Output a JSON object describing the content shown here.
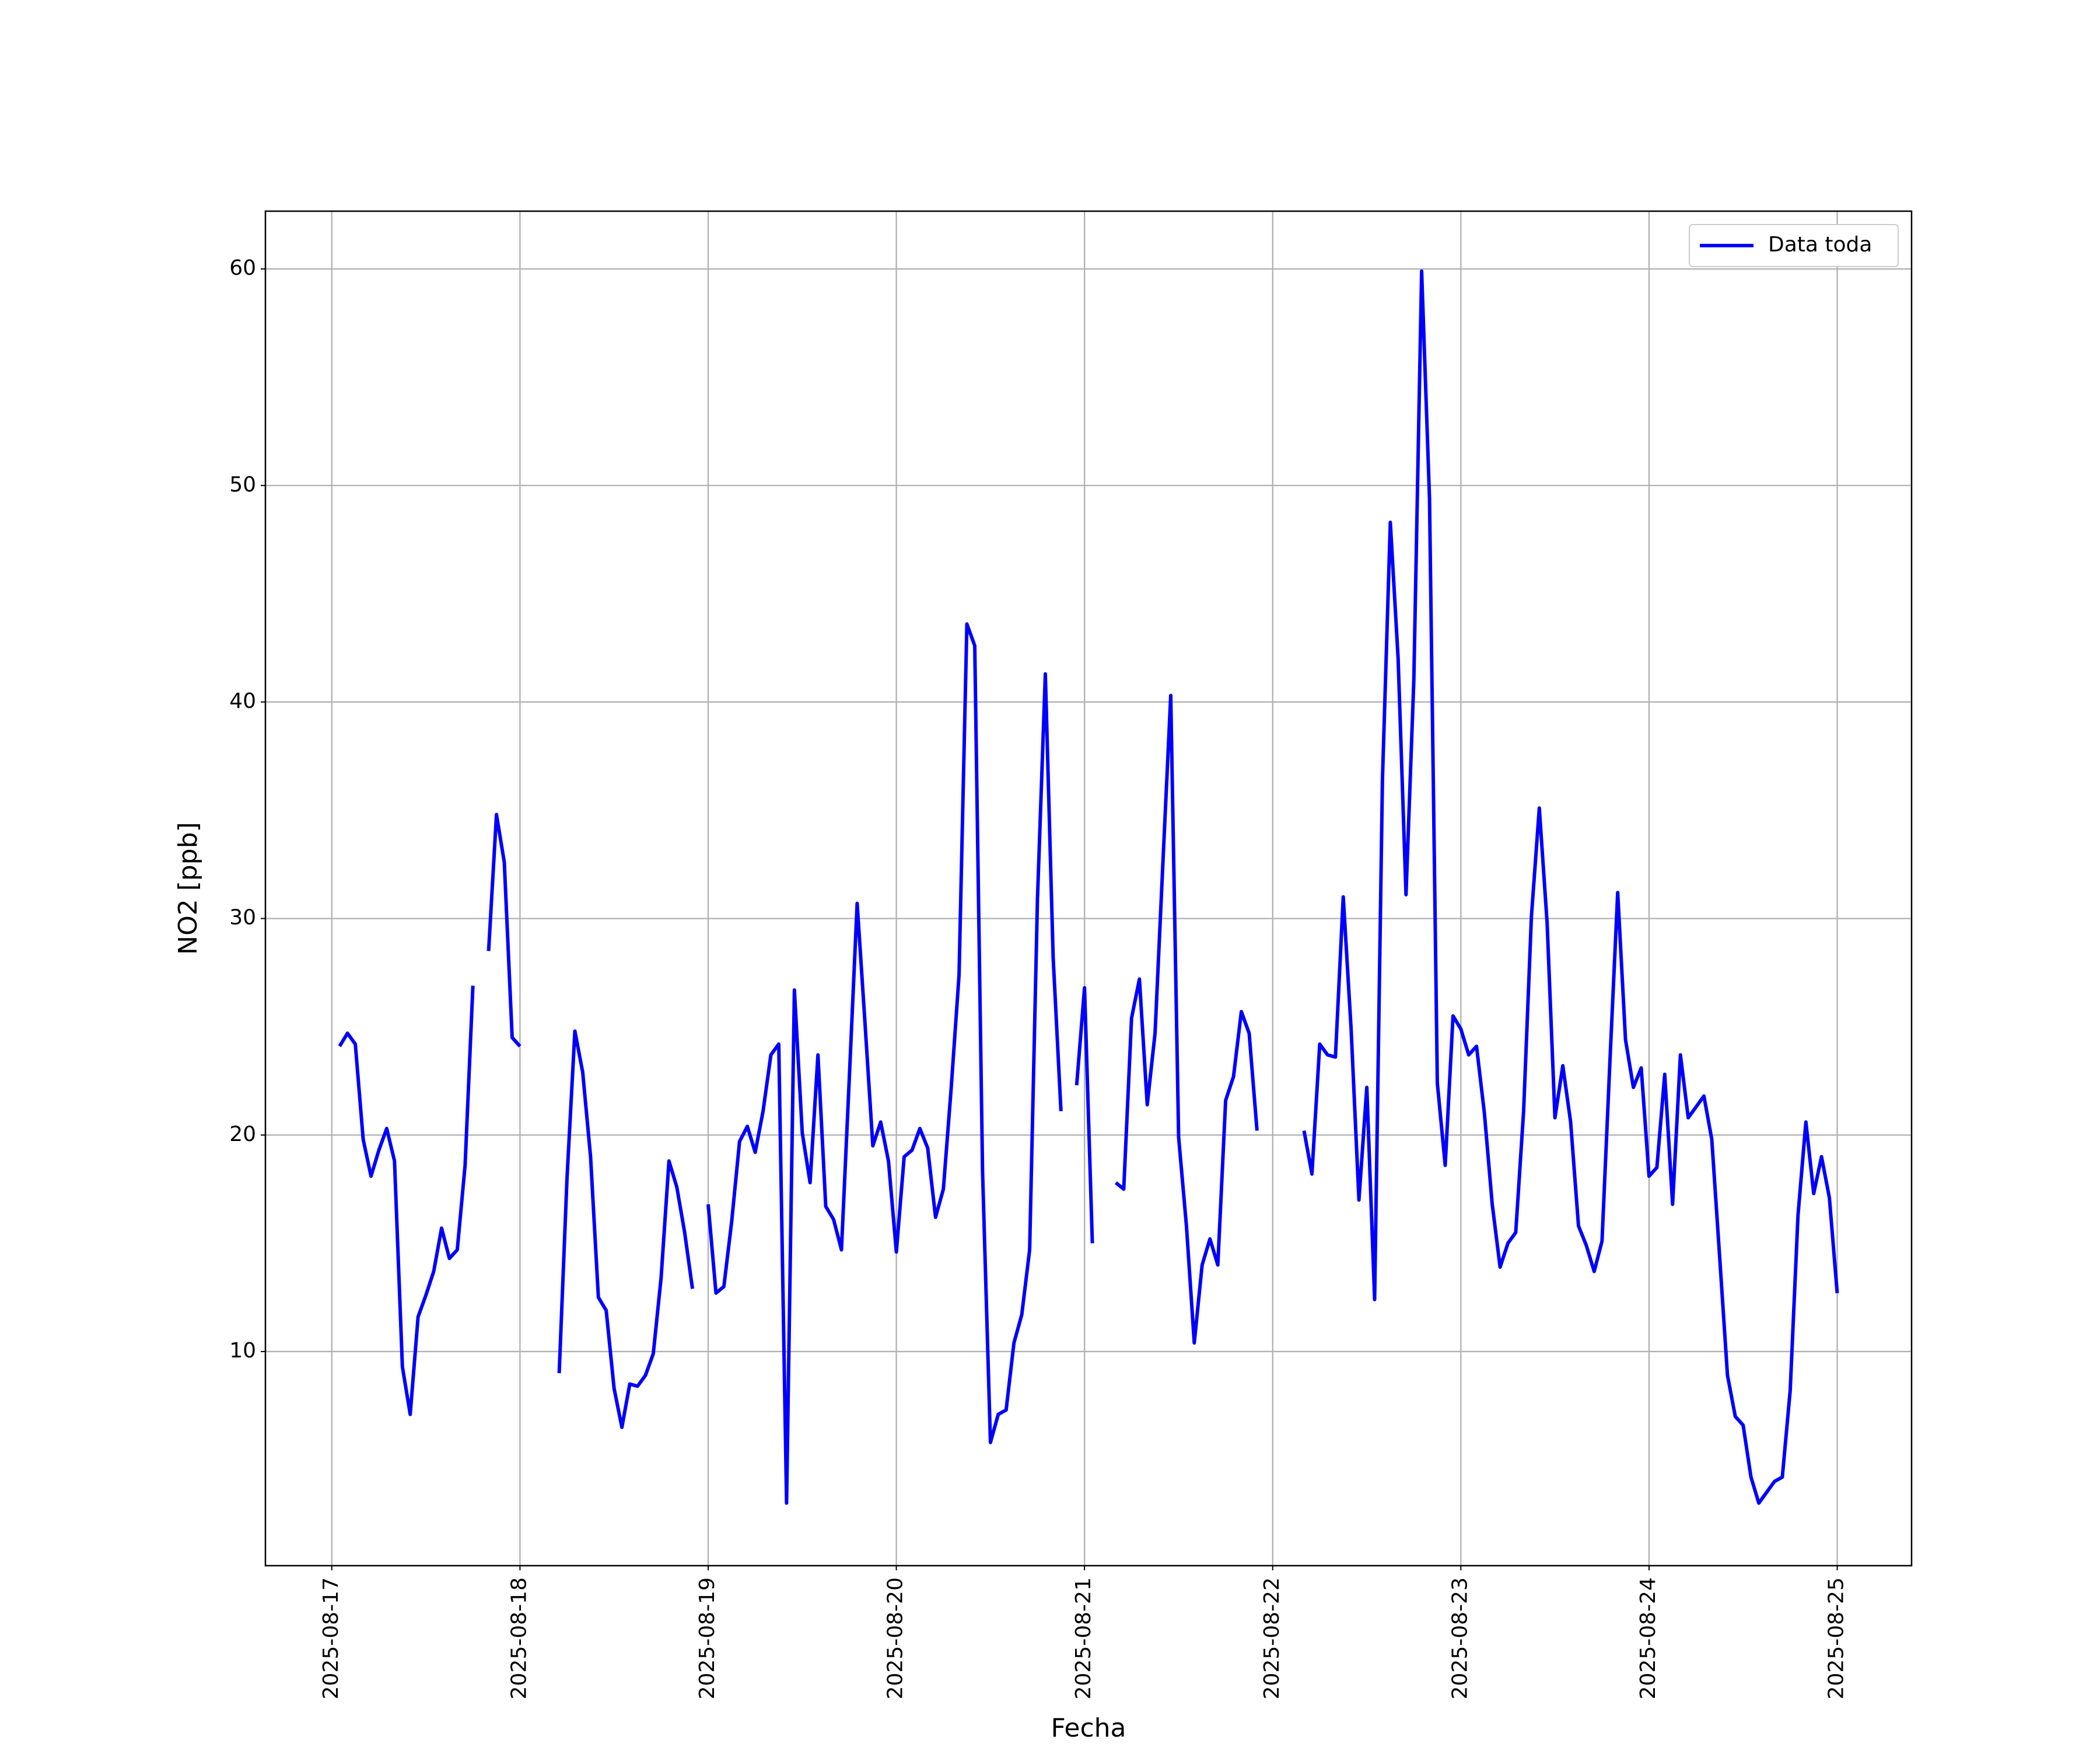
{
  "chart_data": {
    "type": "line",
    "xlabel": "Fecha",
    "ylabel": "NO2 [ppb]",
    "x": [
      "2025-08-17 01:00",
      "2025-08-17 02:00",
      "2025-08-17 03:00",
      "2025-08-17 04:00",
      "2025-08-17 05:00",
      "2025-08-17 06:00",
      "2025-08-17 07:00",
      "2025-08-17 08:00",
      "2025-08-17 09:00",
      "2025-08-17 10:00",
      "2025-08-17 11:00",
      "2025-08-17 12:00",
      "2025-08-17 13:00",
      "2025-08-17 14:00",
      "2025-08-17 15:00",
      "2025-08-17 16:00",
      "2025-08-17 17:00",
      "2025-08-17 18:00",
      "2025-08-17 19:00",
      "2025-08-17 20:00",
      "2025-08-17 21:00",
      "2025-08-17 22:00",
      "2025-08-17 23:00",
      "2025-08-18 00:00",
      "2025-08-18 01:00",
      "2025-08-18 02:00",
      "2025-08-18 03:00",
      "2025-08-18 04:00",
      "2025-08-18 05:00",
      "2025-08-18 06:00",
      "2025-08-18 07:00",
      "2025-08-18 08:00",
      "2025-08-18 09:00",
      "2025-08-18 10:00",
      "2025-08-18 11:00",
      "2025-08-18 12:00",
      "2025-08-18 13:00",
      "2025-08-18 14:00",
      "2025-08-18 15:00",
      "2025-08-18 16:00",
      "2025-08-18 17:00",
      "2025-08-18 18:00",
      "2025-08-18 19:00",
      "2025-08-18 20:00",
      "2025-08-18 21:00",
      "2025-08-18 22:00",
      "2025-08-18 23:00",
      "2025-08-19 00:00",
      "2025-08-19 01:00",
      "2025-08-19 02:00",
      "2025-08-19 03:00",
      "2025-08-19 04:00",
      "2025-08-19 05:00",
      "2025-08-19 06:00",
      "2025-08-19 07:00",
      "2025-08-19 08:00",
      "2025-08-19 09:00",
      "2025-08-19 10:00",
      "2025-08-19 11:00",
      "2025-08-19 12:00",
      "2025-08-19 13:00",
      "2025-08-19 14:00",
      "2025-08-19 15:00",
      "2025-08-19 16:00",
      "2025-08-19 17:00",
      "2025-08-19 18:00",
      "2025-08-19 19:00",
      "2025-08-19 20:00",
      "2025-08-19 21:00",
      "2025-08-19 22:00",
      "2025-08-19 23:00",
      "2025-08-20 00:00",
      "2025-08-20 01:00",
      "2025-08-20 02:00",
      "2025-08-20 03:00",
      "2025-08-20 04:00",
      "2025-08-20 05:00",
      "2025-08-20 06:00",
      "2025-08-20 07:00",
      "2025-08-20 08:00",
      "2025-08-20 09:00",
      "2025-08-20 10:00",
      "2025-08-20 11:00",
      "2025-08-20 12:00",
      "2025-08-20 13:00",
      "2025-08-20 14:00",
      "2025-08-20 15:00",
      "2025-08-20 16:00",
      "2025-08-20 17:00",
      "2025-08-20 18:00",
      "2025-08-20 19:00",
      "2025-08-20 20:00",
      "2025-08-20 21:00",
      "2025-08-20 22:00",
      "2025-08-20 23:00",
      "2025-08-21 00:00",
      "2025-08-21 01:00",
      "2025-08-21 02:00",
      "2025-08-21 03:00",
      "2025-08-21 04:00",
      "2025-08-21 05:00",
      "2025-08-21 06:00",
      "2025-08-21 07:00",
      "2025-08-21 08:00",
      "2025-08-21 09:00",
      "2025-08-21 10:00",
      "2025-08-21 11:00",
      "2025-08-21 12:00",
      "2025-08-21 13:00",
      "2025-08-21 14:00",
      "2025-08-21 15:00",
      "2025-08-21 16:00",
      "2025-08-21 17:00",
      "2025-08-21 18:00",
      "2025-08-21 19:00",
      "2025-08-21 20:00",
      "2025-08-21 21:00",
      "2025-08-21 22:00",
      "2025-08-21 23:00",
      "2025-08-22 00:00",
      "2025-08-22 01:00",
      "2025-08-22 02:00",
      "2025-08-22 03:00",
      "2025-08-22 04:00",
      "2025-08-22 05:00",
      "2025-08-22 06:00",
      "2025-08-22 07:00",
      "2025-08-22 08:00",
      "2025-08-22 09:00",
      "2025-08-22 10:00",
      "2025-08-22 11:00",
      "2025-08-22 12:00",
      "2025-08-22 13:00",
      "2025-08-22 14:00",
      "2025-08-22 15:00",
      "2025-08-22 16:00",
      "2025-08-22 17:00",
      "2025-08-22 18:00",
      "2025-08-22 19:00",
      "2025-08-22 20:00",
      "2025-08-22 21:00",
      "2025-08-22 22:00",
      "2025-08-22 23:00",
      "2025-08-23 00:00",
      "2025-08-23 01:00",
      "2025-08-23 02:00",
      "2025-08-23 03:00",
      "2025-08-23 04:00",
      "2025-08-23 05:00",
      "2025-08-23 06:00",
      "2025-08-23 07:00",
      "2025-08-23 08:00",
      "2025-08-23 09:00",
      "2025-08-23 10:00",
      "2025-08-23 11:00",
      "2025-08-23 12:00",
      "2025-08-23 13:00",
      "2025-08-23 14:00",
      "2025-08-23 15:00",
      "2025-08-23 16:00",
      "2025-08-23 17:00",
      "2025-08-23 18:00",
      "2025-08-23 19:00",
      "2025-08-23 20:00",
      "2025-08-23 21:00",
      "2025-08-23 22:00",
      "2025-08-23 23:00",
      "2025-08-24 00:00",
      "2025-08-24 01:00",
      "2025-08-24 02:00",
      "2025-08-24 03:00",
      "2025-08-24 04:00",
      "2025-08-24 05:00",
      "2025-08-24 06:00",
      "2025-08-24 07:00",
      "2025-08-24 08:00",
      "2025-08-24 09:00",
      "2025-08-24 10:00",
      "2025-08-24 11:00",
      "2025-08-24 12:00",
      "2025-08-24 13:00",
      "2025-08-24 14:00",
      "2025-08-24 15:00",
      "2025-08-24 16:00",
      "2025-08-24 17:00",
      "2025-08-24 18:00",
      "2025-08-24 19:00",
      "2025-08-24 20:00",
      "2025-08-24 21:00",
      "2025-08-24 22:00",
      "2025-08-24 23:00",
      "2025-08-25 00:00"
    ],
    "series": [
      {
        "name": "Data toda",
        "color": "#0000ff",
        "values": [
          24.1,
          24.7,
          24.2,
          19.8,
          18.1,
          19.3,
          20.3,
          18.8,
          9.3,
          7.1,
          11.6,
          12.6,
          13.7,
          15.7,
          14.3,
          14.7,
          18.6,
          26.9,
          null,
          28.5,
          34.8,
          32.6,
          24.5,
          24.1,
          null,
          null,
          null,
          null,
          9.0,
          18.0,
          24.8,
          22.9,
          19.0,
          12.5,
          11.9,
          8.3,
          6.5,
          8.5,
          8.4,
          8.9,
          9.9,
          13.4,
          18.8,
          17.6,
          15.5,
          12.9,
          null,
          16.8,
          12.7,
          13.0,
          16.0,
          19.7,
          20.4,
          19.2,
          21.1,
          23.7,
          24.2,
          3.0,
          26.7,
          20.1,
          17.8,
          23.7,
          16.7,
          16.1,
          14.7,
          22.6,
          30.7,
          25.2,
          19.5,
          20.6,
          18.8,
          14.6,
          19.0,
          19.3,
          20.3,
          19.4,
          16.2,
          17.5,
          22.2,
          27.4,
          43.6,
          42.6,
          18.3,
          5.8,
          7.1,
          7.3,
          10.4,
          11.7,
          14.7,
          30.9,
          41.3,
          28.2,
          21.1,
          null,
          22.3,
          26.8,
          15.0,
          null,
          null,
          17.8,
          17.5,
          25.4,
          27.2,
          21.4,
          24.7,
          32.6,
          40.3,
          19.9,
          15.8,
          10.4,
          14.0,
          15.2,
          14.0,
          21.6,
          22.7,
          25.7,
          24.7,
          20.2,
          null,
          null,
          null,
          null,
          null,
          20.2,
          18.2,
          24.2,
          23.7,
          23.6,
          31.0,
          24.9,
          17.0,
          22.2,
          12.4,
          36.4,
          48.3,
          42.0,
          31.1,
          41.0,
          59.9,
          49.4,
          22.4,
          18.6,
          25.5,
          24.9,
          23.7,
          24.1,
          21.0,
          16.8,
          13.9,
          15.0,
          15.5,
          21.1,
          30.1,
          35.1,
          29.8,
          20.8,
          23.2,
          20.6,
          15.8,
          14.9,
          13.7,
          15.1,
          23.3,
          31.2,
          24.4,
          22.2,
          23.1,
          18.1,
          18.5,
          22.8,
          16.8,
          23.7,
          20.8,
          21.3,
          21.8,
          19.8,
          14.4,
          8.9,
          7.0,
          6.6,
          4.2,
          3.0,
          3.5,
          4.0,
          4.2,
          8.2,
          16.3,
          20.6,
          17.3,
          19.0,
          17.1,
          12.7
        ]
      }
    ],
    "xlim": [
      "2025-08-16 15:32",
      "2025-08-25 09:29"
    ],
    "xticks": [
      "2025-08-17",
      "2025-08-18",
      "2025-08-19",
      "2025-08-20",
      "2025-08-21",
      "2025-08-22",
      "2025-08-23",
      "2025-08-24",
      "2025-08-25"
    ],
    "ylim": [
      0.11,
      62.67
    ],
    "yticks": [
      10,
      20,
      30,
      40,
      50,
      60
    ],
    "grid": true,
    "legend": "upper right"
  }
}
